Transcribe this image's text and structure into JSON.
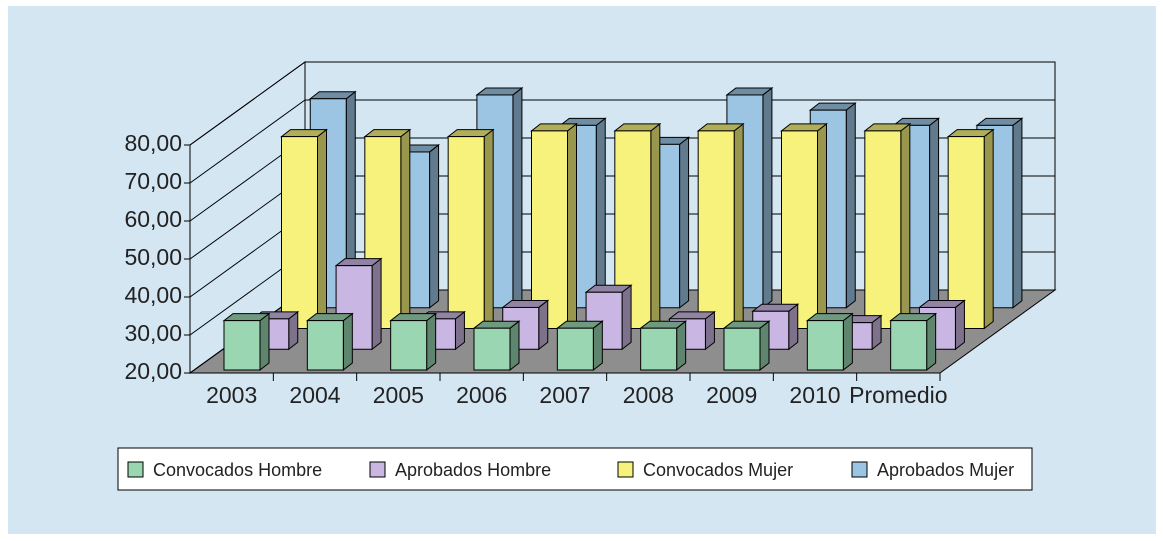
{
  "chart_data": {
    "type": "bar3d",
    "categories": [
      "2003",
      "2004",
      "2005",
      "2006",
      "2007",
      "2008",
      "2009",
      "2010",
      "Promedio"
    ],
    "series": [
      {
        "name": "Convocados Hombre",
        "color": "#9ad6b1",
        "values": [
          33,
          33,
          33,
          31,
          31,
          31,
          31,
          33,
          33
        ]
      },
      {
        "name": "Aprobados Hombre",
        "color": "#c9b6e2",
        "values": [
          28,
          42,
          28,
          31,
          35,
          28,
          30,
          27,
          31
        ]
      },
      {
        "name": "Convocados Mujer",
        "color": "#f6f27c",
        "values": [
          70.5,
          70.5,
          70.5,
          72,
          72,
          72,
          72,
          72,
          70.5
        ]
      },
      {
        "name": "Aprobados Mujer",
        "color": "#9cc5e3",
        "values": [
          75,
          61,
          76,
          68,
          63,
          76,
          72,
          68,
          68
        ]
      }
    ],
    "ylim": [
      20,
      80
    ],
    "yticks": [
      {
        "value": 20,
        "label": "20,00"
      },
      {
        "value": 30,
        "label": "30,00"
      },
      {
        "value": 40,
        "label": "40,00"
      },
      {
        "value": 50,
        "label": "50,00"
      },
      {
        "value": 60,
        "label": "60,00"
      },
      {
        "value": 70,
        "label": "70,00"
      },
      {
        "value": 80,
        "label": "80,00"
      }
    ],
    "grid": true
  }
}
